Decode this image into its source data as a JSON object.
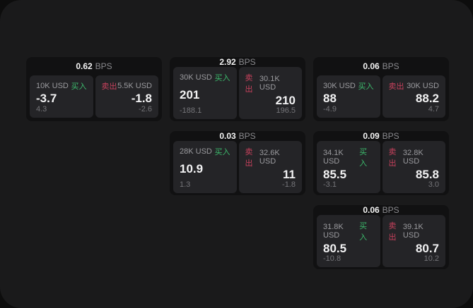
{
  "labels": {
    "bps_unit": "BPS",
    "buy": "买入",
    "sell": "卖出"
  },
  "colors": {
    "buy_green": "#3cba6c",
    "sell_red": "#c8415d",
    "surface": "#1a1a1b",
    "card_bg": "#111112",
    "panel_bg": "#242427"
  },
  "cards": [
    {
      "bps": "0.62",
      "col": 1,
      "row": 1,
      "buy": {
        "notional": "10K USD",
        "value": "-3.7",
        "sub": "4.3"
      },
      "sell": {
        "notional": "5.5K USD",
        "value": "-1.8",
        "sub": "-2.6"
      }
    },
    {
      "bps": "2.92",
      "col": 2,
      "row": 1,
      "buy": {
        "notional": "30K USD",
        "value": "201",
        "sub": "-188.1"
      },
      "sell": {
        "notional": "30.1K USD",
        "value": "210",
        "sub": "196.5"
      }
    },
    {
      "bps": "0.06",
      "col": 3,
      "row": 1,
      "buy": {
        "notional": "30K USD",
        "value": "88",
        "sub": "-4.9"
      },
      "sell": {
        "notional": "30K USD",
        "value": "88.2",
        "sub": "4.7"
      }
    },
    {
      "bps": "0.03",
      "col": 2,
      "row": 2,
      "buy": {
        "notional": "28K USD",
        "value": "10.9",
        "sub": "1.3"
      },
      "sell": {
        "notional": "32.6K USD",
        "value": "11",
        "sub": "-1.8"
      }
    },
    {
      "bps": "0.09",
      "col": 3,
      "row": 2,
      "buy": {
        "notional": "34.1K USD",
        "value": "85.5",
        "sub": "-3.1"
      },
      "sell": {
        "notional": "32.8K USD",
        "value": "85.8",
        "sub": "3.0"
      }
    },
    {
      "bps": "0.06",
      "col": 3,
      "row": 3,
      "buy": {
        "notional": "31.8K USD",
        "value": "80.5",
        "sub": "-10.8"
      },
      "sell": {
        "notional": "39.1K USD",
        "value": "80.7",
        "sub": "10.2"
      }
    }
  ]
}
